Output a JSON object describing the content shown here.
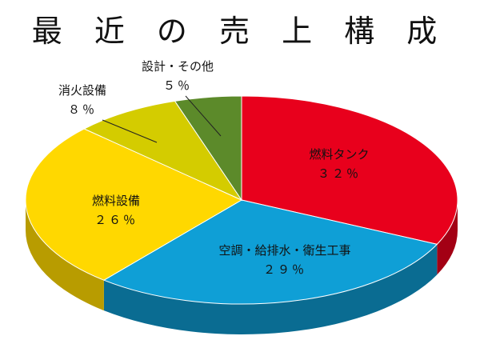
{
  "chart_data": {
    "type": "pie",
    "title": "最 近 の 売 上 構 成",
    "slices": [
      {
        "label": "燃料タンク",
        "value_label": "３２％",
        "value": 32,
        "color": "#e8001c",
        "side": "#a30014"
      },
      {
        "label": "空調・給排水・衛生工事",
        "value_label": "２９％",
        "value": 29,
        "color": "#0f9fd6",
        "side": "#0a6c92"
      },
      {
        "label": "燃料設備",
        "value_label": "２６％",
        "value": 26,
        "color": "#ffd800",
        "side": "#b89c00"
      },
      {
        "label": "消火設備",
        "value_label": "８％",
        "value": 8,
        "color": "#d4cc00",
        "side": "#948e00"
      },
      {
        "label": "設計・その他",
        "value_label": "５％",
        "value": 5,
        "color": "#5c8a2a",
        "side": "#3e5f1c"
      }
    ]
  }
}
